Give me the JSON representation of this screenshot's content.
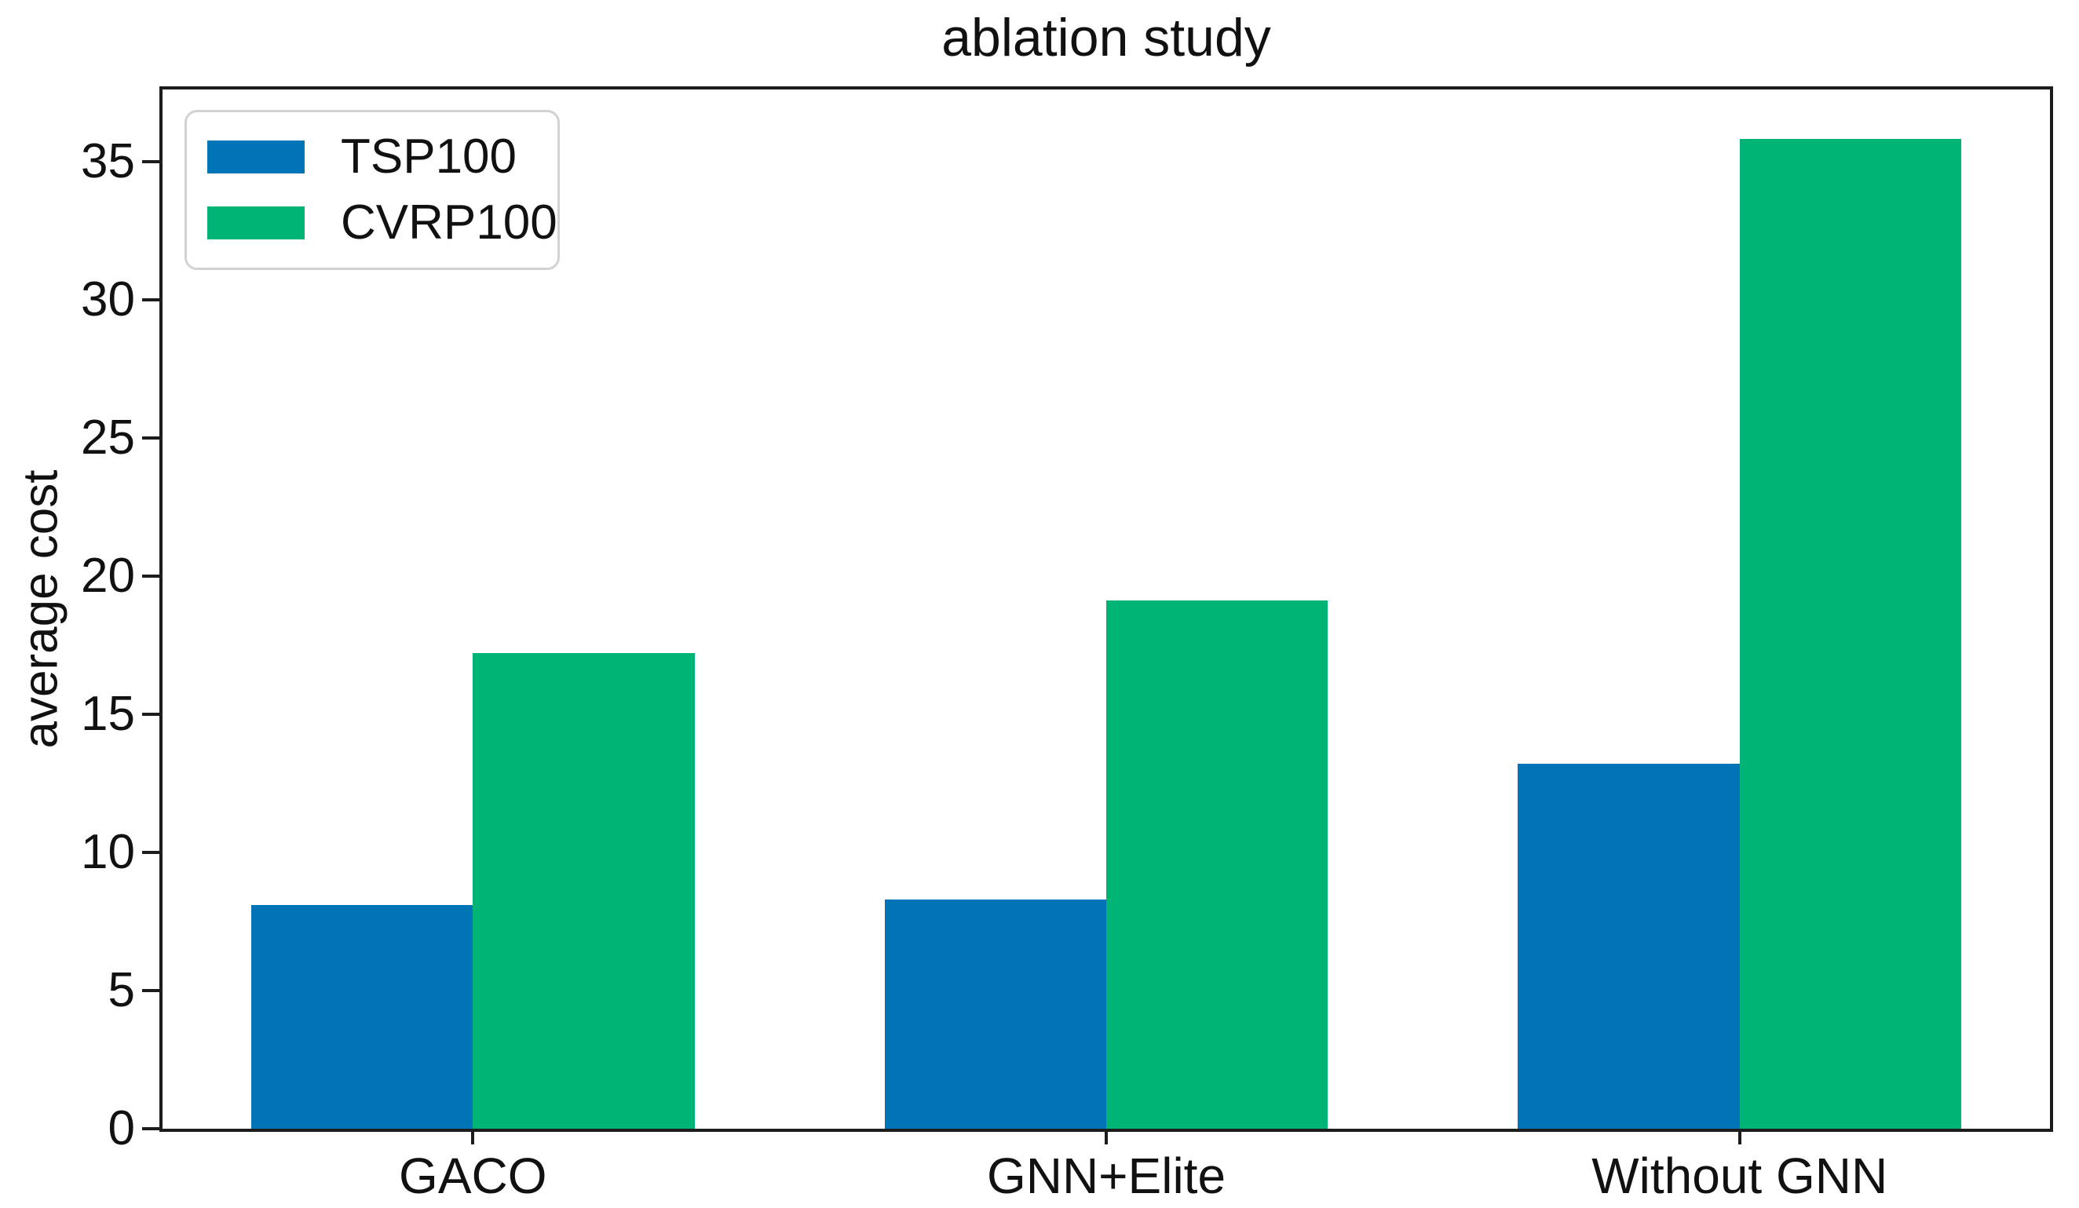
{
  "chart_data": {
    "type": "bar",
    "title": "ablation study",
    "ylabel": "average cost",
    "xlabel": "",
    "categories": [
      "GACO",
      "GNN+Elite",
      "Without GNN"
    ],
    "series": [
      {
        "name": "TSP100",
        "color": "#0074B7",
        "values": [
          8.1,
          8.3,
          13.2
        ]
      },
      {
        "name": "CVRP100",
        "color": "#00B476",
        "values": [
          17.2,
          19.1,
          35.8
        ]
      }
    ],
    "yticks": [
      0,
      5,
      10,
      15,
      20,
      25,
      30,
      35
    ],
    "ylim": [
      0,
      37.6
    ],
    "grid": false,
    "legend_position": "upper left",
    "colors": {
      "axis": "#1c1c1c",
      "text": "#111111",
      "legend_border": "#d2d2d2",
      "background": "#ffffff"
    }
  }
}
